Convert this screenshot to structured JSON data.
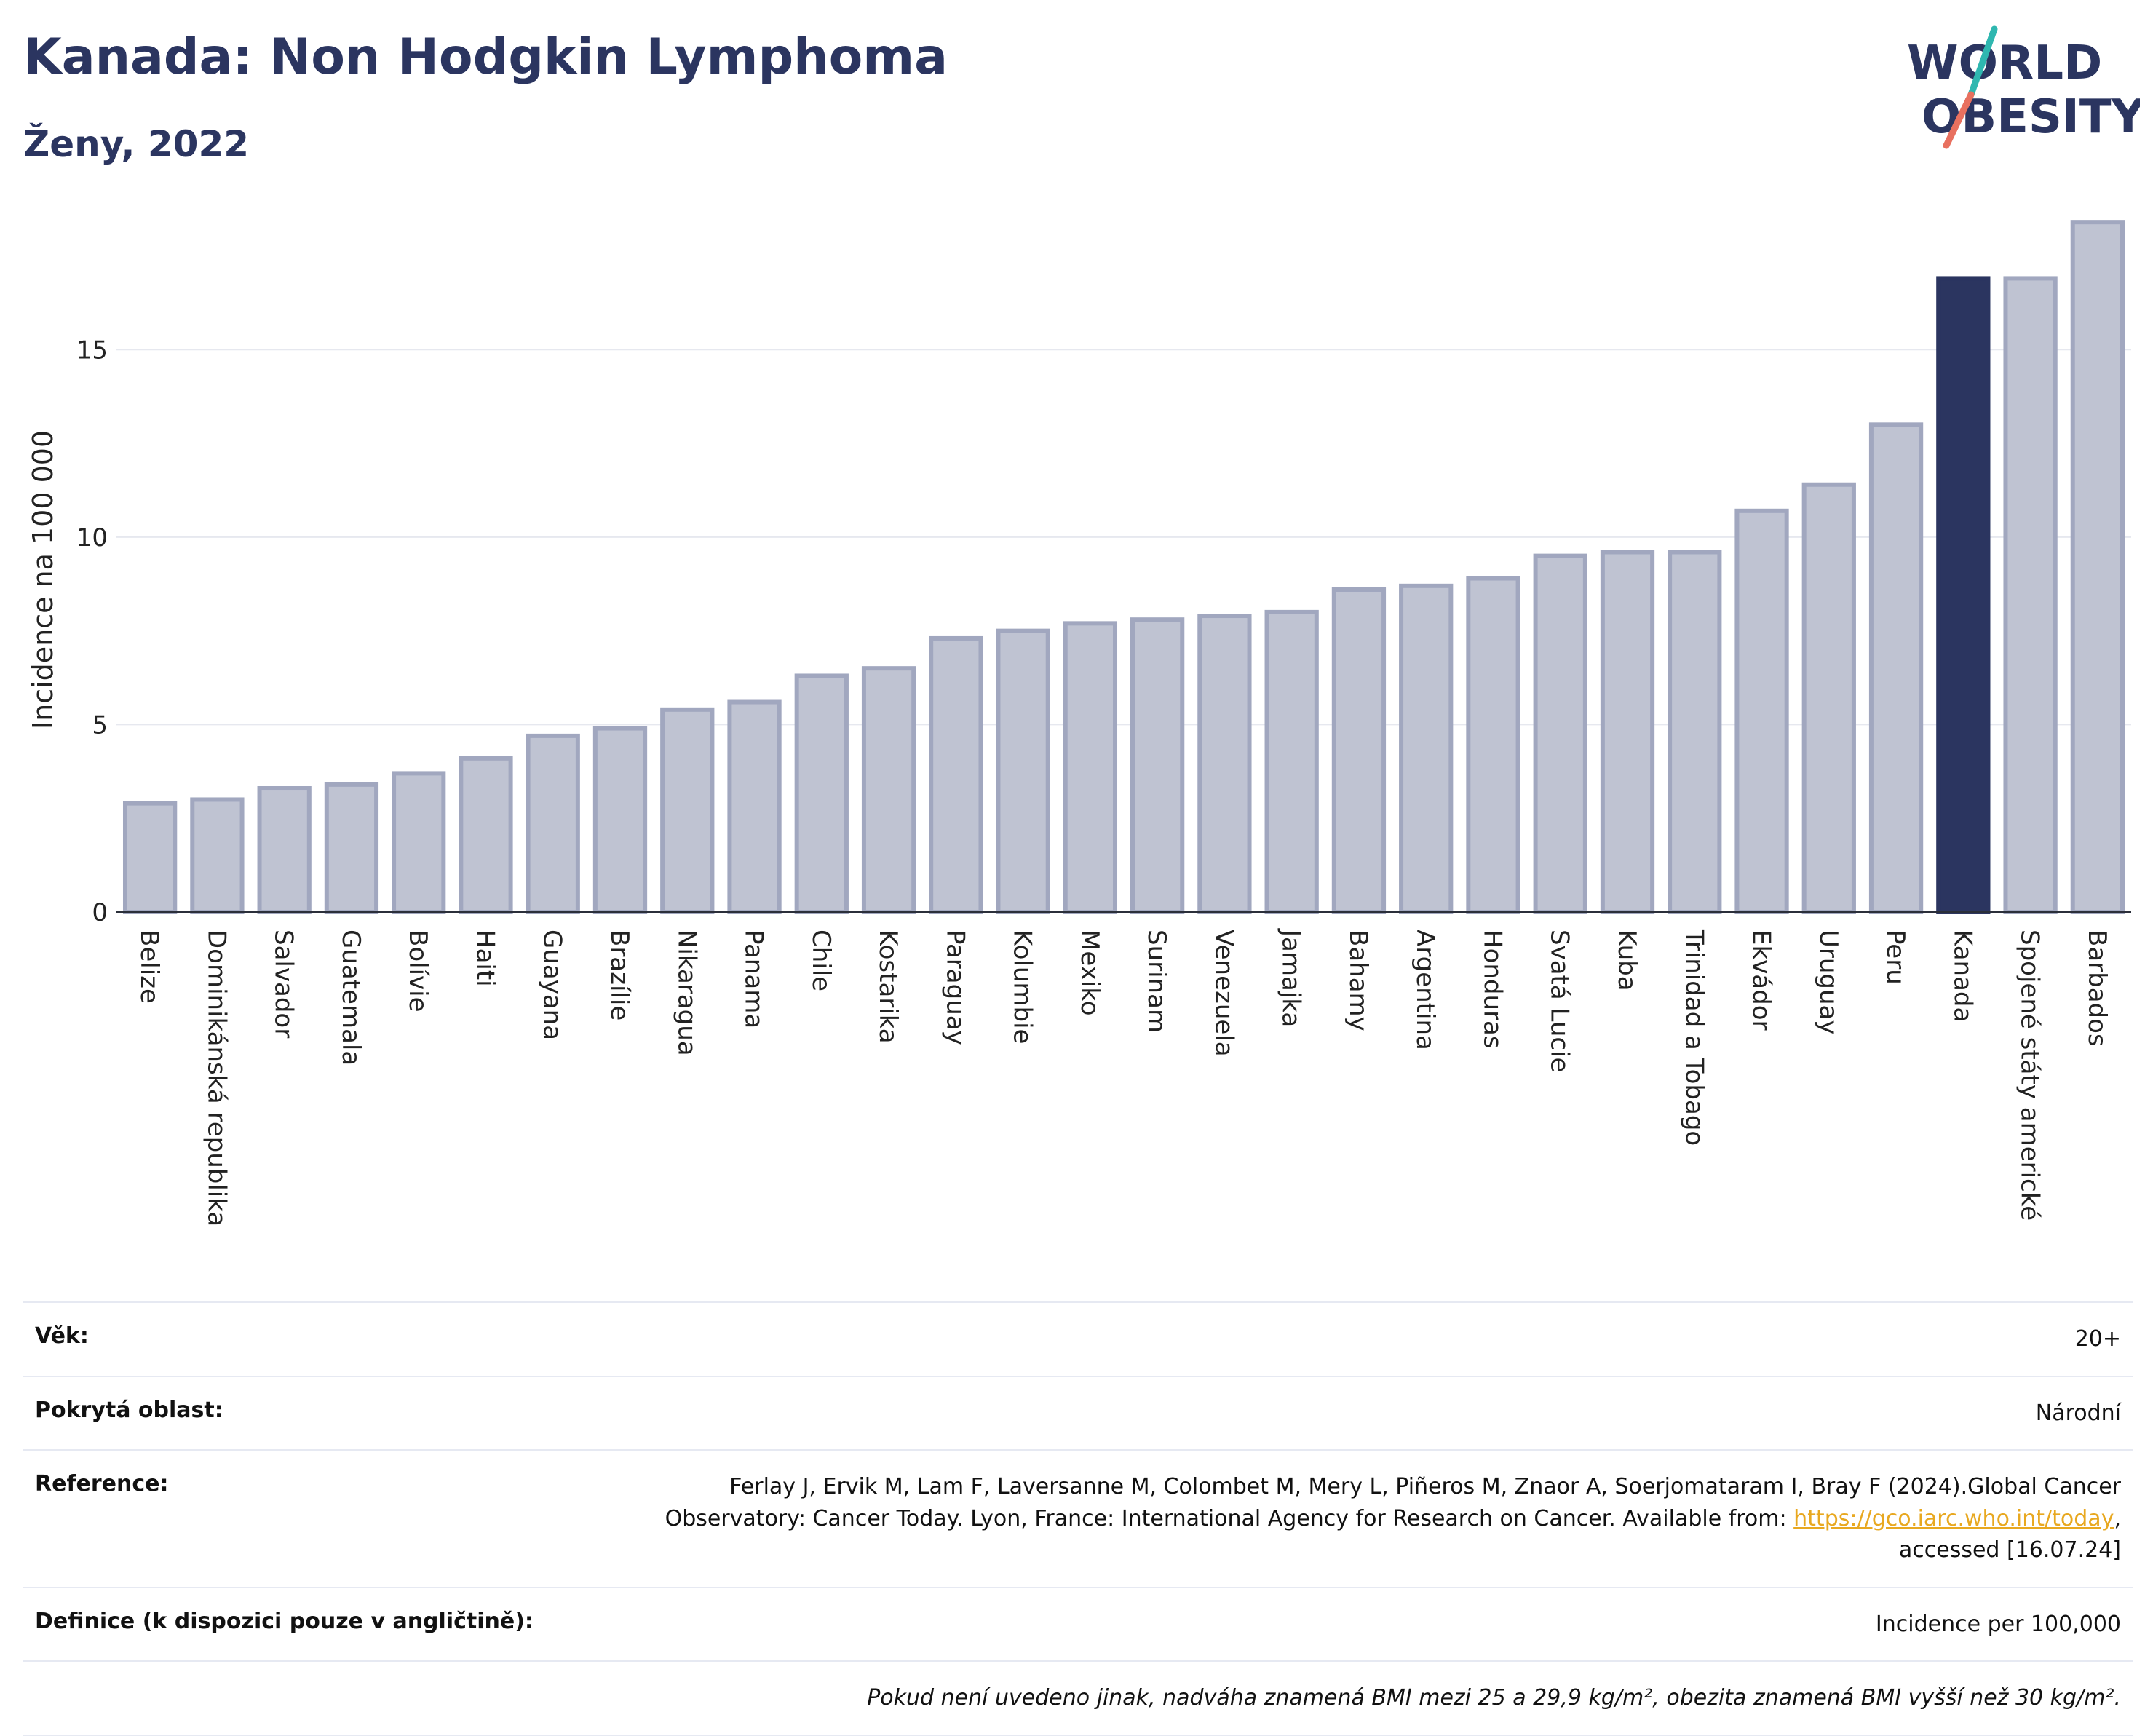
{
  "header": {
    "title": "Kanada: Non Hodgkin Lymphoma",
    "subtitle": "Ženy, 2022",
    "logo_line1": "WORLD",
    "logo_line2": "OBESITY"
  },
  "chart_data": {
    "type": "bar",
    "ylabel": "Incidence na 100 000",
    "ylim": [
      0,
      18.5
    ],
    "yticks": [
      0,
      5,
      10,
      15
    ],
    "grid": true,
    "highlight": "Kanada",
    "colors": {
      "default": "#bfc3d2",
      "default_border": "#a1a7bf",
      "highlight": "#2b3560"
    },
    "categories": [
      "Belize",
      "Dominikánská republika",
      "Salvador",
      "Guatemala",
      "Bolívie",
      "Haiti",
      "Guayana",
      "Brazílie",
      "Nikaragua",
      "Panama",
      "Chile",
      "Kostarika",
      "Paraguay",
      "Kolumbie",
      "Mexiko",
      "Surinam",
      "Venezuela",
      "Jamajka",
      "Bahamy",
      "Argentina",
      "Honduras",
      "Svatá Lucie",
      "Kuba",
      "Trinidad a Tobago",
      "Ekvádor",
      "Uruguay",
      "Peru",
      "Kanada",
      "Spojené státy americké",
      "Barbados"
    ],
    "values": [
      2.9,
      3.0,
      3.3,
      3.4,
      3.7,
      4.1,
      4.7,
      4.9,
      5.4,
      5.6,
      6.3,
      6.5,
      7.3,
      7.5,
      7.7,
      7.8,
      7.9,
      8.0,
      8.6,
      8.7,
      8.9,
      9.5,
      9.6,
      9.6,
      10.7,
      11.4,
      13.0,
      16.9,
      16.9,
      18.4
    ]
  },
  "info": {
    "age_label": "Věk:",
    "age_value": "20+",
    "area_label": "Pokrytá oblast:",
    "area_value": "Národní",
    "reference_label": "Reference:",
    "reference_text_1": "Ferlay J, Ervik M, Lam F, Laversanne M, Colombet M, Mery L, Piñeros M, Znaor A, Soerjomataram I, Bray F (2024).Global Cancer",
    "reference_text_2": "Observatory: Cancer Today. Lyon, France: International Agency for Research on Cancer. Available from: ",
    "reference_link": "https://gco.iarc.who.int/today",
    "reference_text_3": ",",
    "reference_text_4": "accessed [16.07.24]",
    "definition_label": "Definice (k dispozici pouze v angličtině):",
    "definition_value": "Incidence per 100,000",
    "note": "Pokud není uvedeno jinak, nadváha znamená BMI mezi 25 a 29,9 kg/m², obezita znamená BMI vyšší než 30 kg/m²."
  }
}
